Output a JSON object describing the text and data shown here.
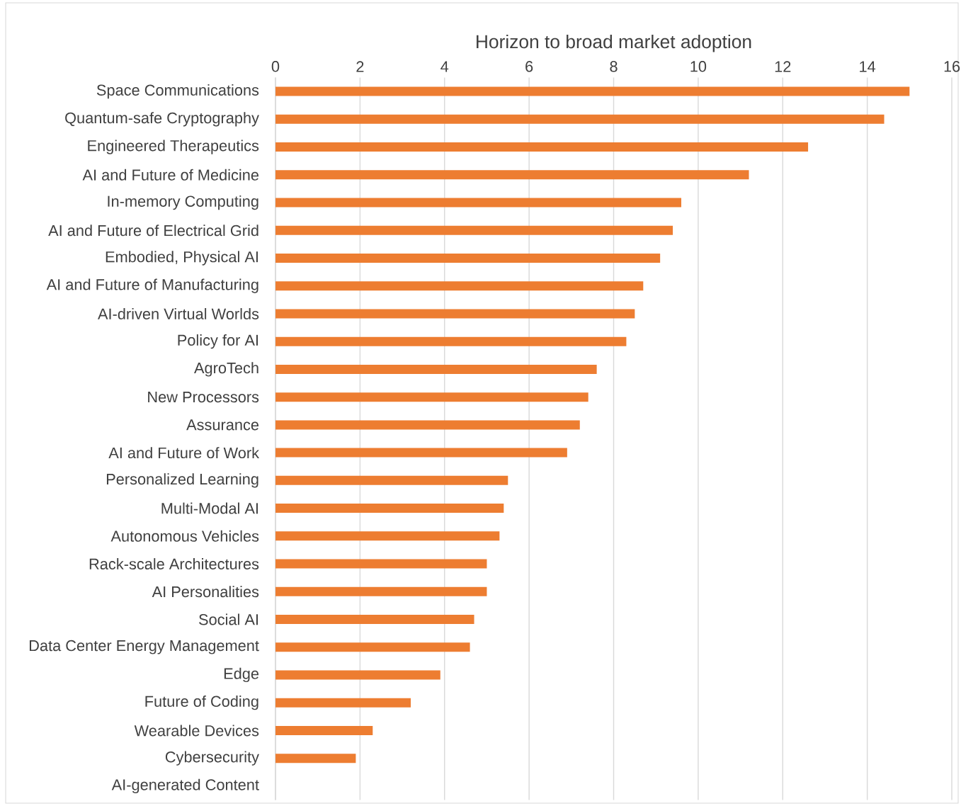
{
  "chart_data": {
    "type": "bar",
    "orientation": "horizontal",
    "title": "Horizon to broad market adoption",
    "categories": [
      "Space Communications",
      "Quantum-safe Cryptography",
      "Engineered Therapeutics",
      "AI and Future of Medicine",
      "In-memory Computing",
      "AI and Future of Electrical  Grid",
      "Embodied, Physical AI",
      "AI and Future of Manufacturing",
      "AI-driven Virtual Worlds",
      "Policy for AI",
      "AgroTech",
      "New Processors",
      "Assurance",
      "AI and Future of Work",
      "Personalized Learning",
      "Multi-Modal AI",
      "Autonomous Vehicles",
      "Rack-scale Architectures",
      "AI Personalities",
      "Social AI",
      "Data Center Energy Management",
      "Edge",
      "Future of Coding",
      "Wearable Devices",
      "Cybersecurity",
      "AI-generated Content"
    ],
    "values": [
      15.0,
      14.4,
      12.6,
      11.2,
      9.6,
      9.4,
      9.1,
      8.7,
      8.5,
      8.3,
      7.6,
      7.4,
      7.2,
      6.9,
      5.5,
      5.4,
      5.3,
      5.0,
      5.0,
      4.7,
      4.6,
      3.9,
      3.2,
      2.3,
      1.9,
      0
    ],
    "color": "#ed7d31",
    "xlim": [
      0,
      16
    ],
    "xticks": [
      0,
      2,
      4,
      6,
      8,
      10,
      12,
      14,
      16
    ],
    "grid": "x"
  }
}
